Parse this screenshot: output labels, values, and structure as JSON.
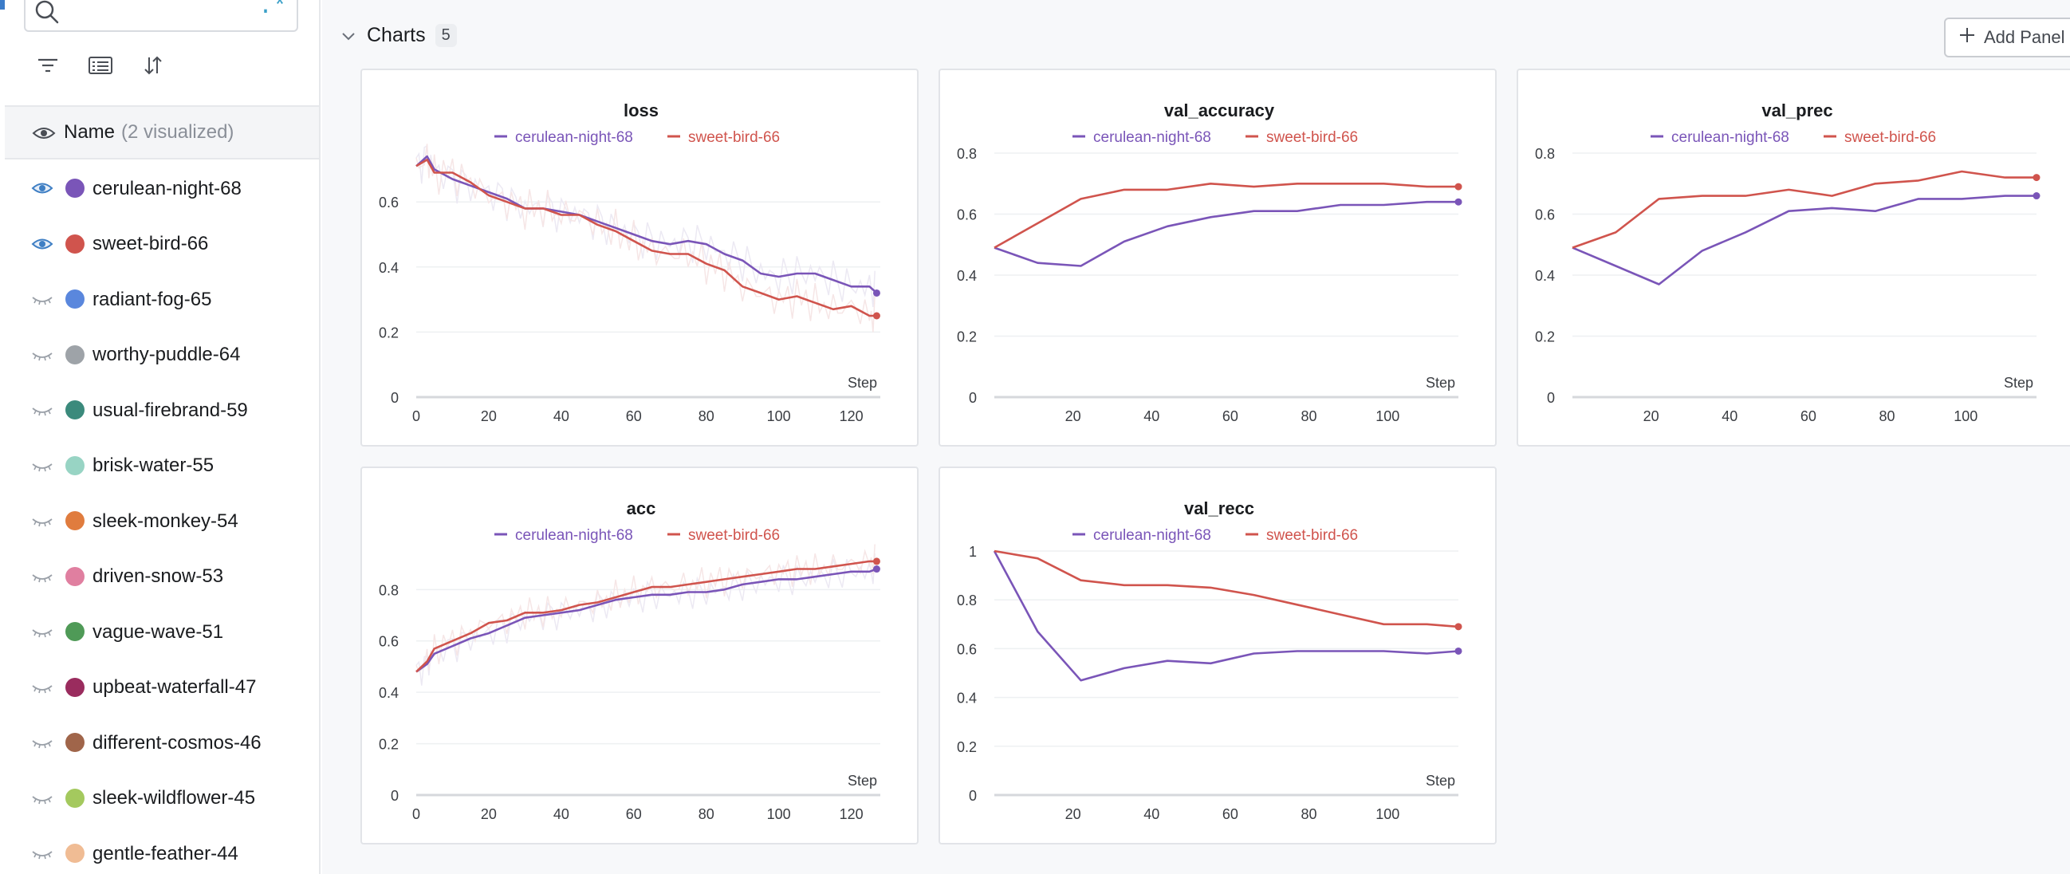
{
  "sidebar": {
    "search": {
      "value": "",
      "placeholder": "",
      "regex_label": ".*"
    },
    "tools": [
      "filter-icon",
      "table-icon",
      "sort-icon"
    ],
    "name_header": {
      "label": "Name",
      "count": "(2 visualized)"
    },
    "runs": [
      {
        "name": "cerulean-night-68",
        "color": "#7a55b8",
        "visible": true
      },
      {
        "name": "sweet-bird-66",
        "color": "#d0544d",
        "visible": true
      },
      {
        "name": "radiant-fog-65",
        "color": "#5a87dd",
        "visible": false
      },
      {
        "name": "worthy-puddle-64",
        "color": "#9ea3a8",
        "visible": false
      },
      {
        "name": "usual-firebrand-59",
        "color": "#3b8a7c",
        "visible": false
      },
      {
        "name": "brisk-water-55",
        "color": "#98d4c4",
        "visible": false
      },
      {
        "name": "sleek-monkey-54",
        "color": "#e07c3e",
        "visible": false
      },
      {
        "name": "driven-snow-53",
        "color": "#e07fa0",
        "visible": false
      },
      {
        "name": "vague-wave-51",
        "color": "#4f9a57",
        "visible": false
      },
      {
        "name": "upbeat-waterfall-47",
        "color": "#9a2c5e",
        "visible": false
      },
      {
        "name": "different-cosmos-46",
        "color": "#a0654a",
        "visible": false
      },
      {
        "name": "sleek-wildflower-45",
        "color": "#a4c95e",
        "visible": false
      },
      {
        "name": "gentle-feather-44",
        "color": "#f0bc94",
        "visible": false
      }
    ]
  },
  "section": {
    "title": "Charts",
    "count": "5",
    "add_panel_label": "Add Panel"
  },
  "colors": {
    "series_a": "#7a55b8",
    "series_b": "#d0544d",
    "ghost_a": "#ece9f3",
    "ghost_b": "#f6e6e6"
  },
  "chart_data": [
    {
      "type": "line",
      "title": "loss",
      "xlabel": "Step",
      "xlim": [
        0,
        128
      ],
      "ylim": [
        0,
        0.75
      ],
      "xticks": [
        0,
        20,
        40,
        60,
        80,
        100,
        120
      ],
      "yticks": [
        0,
        0.2,
        0.4,
        0.6
      ],
      "ghost": true,
      "series": [
        {
          "name": "cerulean-night-68",
          "x": [
            0,
            3,
            5,
            10,
            15,
            20,
            25,
            30,
            35,
            40,
            45,
            50,
            55,
            60,
            65,
            70,
            75,
            80,
            85,
            90,
            95,
            100,
            105,
            110,
            115,
            120,
            125,
            127
          ],
          "y": [
            0.71,
            0.74,
            0.7,
            0.67,
            0.65,
            0.63,
            0.61,
            0.58,
            0.58,
            0.57,
            0.56,
            0.54,
            0.52,
            0.5,
            0.48,
            0.47,
            0.48,
            0.47,
            0.44,
            0.42,
            0.38,
            0.37,
            0.38,
            0.38,
            0.36,
            0.34,
            0.34,
            0.32
          ]
        },
        {
          "name": "sweet-bird-66",
          "x": [
            0,
            3,
            5,
            10,
            15,
            20,
            25,
            30,
            35,
            40,
            45,
            50,
            55,
            60,
            65,
            70,
            75,
            80,
            85,
            90,
            95,
            100,
            105,
            110,
            115,
            120,
            125,
            127
          ],
          "y": [
            0.71,
            0.73,
            0.69,
            0.69,
            0.66,
            0.62,
            0.6,
            0.58,
            0.58,
            0.56,
            0.56,
            0.53,
            0.51,
            0.48,
            0.45,
            0.44,
            0.44,
            0.41,
            0.39,
            0.34,
            0.32,
            0.3,
            0.31,
            0.29,
            0.27,
            0.28,
            0.25,
            0.25
          ]
        }
      ]
    },
    {
      "type": "line",
      "title": "val_accuracy",
      "xlabel": "Step",
      "xlim": [
        0,
        118
      ],
      "ylim": [
        0,
        0.8
      ],
      "xticks": [
        20,
        40,
        60,
        80,
        100
      ],
      "yticks": [
        0,
        0.2,
        0.4,
        0.6,
        0.8
      ],
      "ghost": false,
      "series": [
        {
          "name": "cerulean-night-68",
          "x": [
            0,
            11,
            22,
            33,
            44,
            55,
            66,
            77,
            88,
            99,
            110,
            118
          ],
          "y": [
            0.49,
            0.44,
            0.43,
            0.51,
            0.56,
            0.59,
            0.61,
            0.61,
            0.63,
            0.63,
            0.64,
            0.64
          ]
        },
        {
          "name": "sweet-bird-66",
          "x": [
            0,
            11,
            22,
            33,
            44,
            55,
            66,
            77,
            88,
            99,
            110,
            118
          ],
          "y": [
            0.49,
            0.57,
            0.65,
            0.68,
            0.68,
            0.7,
            0.69,
            0.7,
            0.7,
            0.7,
            0.69,
            0.69
          ]
        }
      ]
    },
    {
      "type": "line",
      "title": "val_prec",
      "xlabel": "Step",
      "xlim": [
        0,
        118
      ],
      "ylim": [
        0,
        0.8
      ],
      "xticks": [
        20,
        40,
        60,
        80,
        100
      ],
      "yticks": [
        0,
        0.2,
        0.4,
        0.6,
        0.8
      ],
      "ghost": false,
      "series": [
        {
          "name": "cerulean-night-68",
          "x": [
            0,
            11,
            22,
            33,
            44,
            55,
            66,
            77,
            88,
            99,
            110,
            118
          ],
          "y": [
            0.49,
            0.43,
            0.37,
            0.48,
            0.54,
            0.61,
            0.62,
            0.61,
            0.65,
            0.65,
            0.66,
            0.66
          ]
        },
        {
          "name": "sweet-bird-66",
          "x": [
            0,
            11,
            22,
            33,
            44,
            55,
            66,
            77,
            88,
            99,
            110,
            118
          ],
          "y": [
            0.49,
            0.54,
            0.65,
            0.66,
            0.66,
            0.68,
            0.66,
            0.7,
            0.71,
            0.74,
            0.72,
            0.72
          ]
        }
      ]
    },
    {
      "type": "line",
      "title": "acc",
      "xlabel": "Step",
      "xlim": [
        0,
        128
      ],
      "ylim": [
        0,
        0.95
      ],
      "xticks": [
        0,
        20,
        40,
        60,
        80,
        100,
        120
      ],
      "yticks": [
        0,
        0.2,
        0.4,
        0.6,
        0.8
      ],
      "ghost": true,
      "series": [
        {
          "name": "cerulean-night-68",
          "x": [
            0,
            3,
            5,
            10,
            15,
            20,
            25,
            30,
            35,
            40,
            45,
            50,
            55,
            60,
            65,
            70,
            75,
            80,
            85,
            90,
            95,
            100,
            105,
            110,
            115,
            120,
            125,
            127
          ],
          "y": [
            0.48,
            0.51,
            0.55,
            0.58,
            0.61,
            0.63,
            0.66,
            0.69,
            0.7,
            0.71,
            0.72,
            0.74,
            0.76,
            0.77,
            0.78,
            0.78,
            0.79,
            0.79,
            0.8,
            0.82,
            0.83,
            0.84,
            0.84,
            0.85,
            0.86,
            0.87,
            0.87,
            0.88
          ]
        },
        {
          "name": "sweet-bird-66",
          "x": [
            0,
            3,
            5,
            10,
            15,
            20,
            25,
            30,
            35,
            40,
            45,
            50,
            55,
            60,
            65,
            70,
            75,
            80,
            85,
            90,
            95,
            100,
            105,
            110,
            115,
            120,
            125,
            127
          ],
          "y": [
            0.48,
            0.52,
            0.57,
            0.6,
            0.63,
            0.67,
            0.68,
            0.71,
            0.71,
            0.72,
            0.74,
            0.75,
            0.77,
            0.79,
            0.81,
            0.81,
            0.82,
            0.83,
            0.84,
            0.85,
            0.86,
            0.87,
            0.88,
            0.88,
            0.89,
            0.9,
            0.91,
            0.91
          ]
        }
      ]
    },
    {
      "type": "line",
      "title": "val_recc",
      "xlabel": "Step",
      "xlim": [
        0,
        118
      ],
      "ylim": [
        0,
        1
      ],
      "xticks": [
        20,
        40,
        60,
        80,
        100
      ],
      "yticks": [
        0,
        0.2,
        0.4,
        0.6,
        0.8,
        1
      ],
      "ghost": false,
      "series": [
        {
          "name": "cerulean-night-68",
          "x": [
            0,
            11,
            22,
            33,
            44,
            55,
            66,
            77,
            88,
            99,
            110,
            118
          ],
          "y": [
            1.0,
            0.67,
            0.47,
            0.52,
            0.55,
            0.54,
            0.58,
            0.59,
            0.59,
            0.59,
            0.58,
            0.59
          ]
        },
        {
          "name": "sweet-bird-66",
          "x": [
            0,
            11,
            22,
            33,
            44,
            55,
            66,
            77,
            88,
            99,
            110,
            118
          ],
          "y": [
            1.0,
            0.97,
            0.88,
            0.86,
            0.86,
            0.85,
            0.82,
            0.78,
            0.74,
            0.7,
            0.7,
            0.69
          ]
        }
      ]
    }
  ]
}
